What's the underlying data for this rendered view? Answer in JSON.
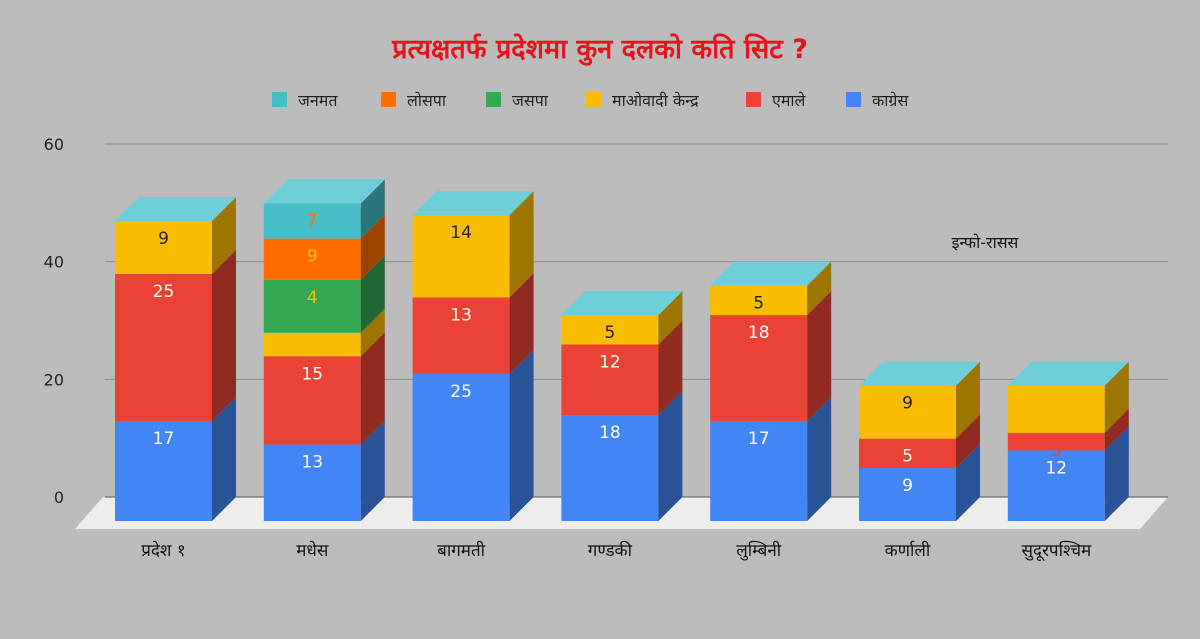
{
  "chart_data": {
    "type": "bar",
    "stacked": true,
    "three_d": true,
    "title": "प्रत्यक्षतर्फ प्रदेशमा कुन दलको कति सिट ?",
    "watermark": "इन्फो-रासस",
    "categories": [
      "प्रदेश १",
      "मधेस",
      "बागमती",
      "गण्डकी",
      "लुम्बिनी",
      "कर्णाली",
      "सुदूरपश्चिम"
    ],
    "ylim": [
      0,
      60
    ],
    "yticks": [
      0,
      20,
      40,
      60
    ],
    "grid": true,
    "legend_position": "top",
    "legend_order": [
      "जनमत",
      "लोसपा",
      "जसपा",
      "माओवादी केन्द्र",
      "एमाले",
      "काग्रेस"
    ],
    "series": [
      {
        "name": "काग्रेस",
        "color": "#4285f4",
        "values": [
          17,
          13,
          25,
          18,
          17,
          9,
          12
        ],
        "labels": [
          "17",
          "13",
          "25",
          "18",
          "17",
          "9",
          "12"
        ],
        "label_colors": [
          "#ffffff",
          "#ffffff",
          "#ffffff",
          "#ffffff",
          "#ffffff",
          "#ffffff",
          "#ffffff"
        ]
      },
      {
        "name": "एमाले",
        "color": "#ea4335",
        "values": [
          25,
          15,
          13,
          12,
          18,
          5,
          3
        ],
        "labels": [
          "25",
          "15",
          "13",
          "12",
          "18",
          "5",
          "3"
        ],
        "label_colors": [
          "#ffffff",
          "#ffffff",
          "#ffffff",
          "#ffffff",
          "#ffffff",
          "#ffffff",
          "#ea4335"
        ]
      },
      {
        "name": "माओवादी केन्द्र",
        "color": "#fbbc04",
        "values": [
          9,
          4,
          14,
          5,
          5,
          9,
          8
        ],
        "labels": [
          "9",
          "",
          "14",
          "5",
          "5",
          "9",
          "8"
        ],
        "label_colors": [
          "#222222",
          "#222222",
          "#222222",
          "#222222",
          "#222222",
          "#222222",
          "#fbbc04"
        ]
      },
      {
        "name": "जसपा",
        "color": "#34a853",
        "values": [
          0,
          9,
          0,
          0,
          0,
          0,
          0
        ],
        "labels": [
          "",
          "4",
          "",
          "",
          "",
          "",
          ""
        ],
        "label_colors": [
          "#222222",
          "#fbbc04",
          "#222222",
          "#222222",
          "#222222",
          "#222222",
          "#222222"
        ]
      },
      {
        "name": "लोसपा",
        "color": "#ff6d01",
        "values": [
          0,
          7,
          0,
          0,
          0,
          0,
          0
        ],
        "labels": [
          "",
          "9",
          "",
          "",
          "",
          "",
          ""
        ],
        "label_colors": [
          "#222222",
          "#fbbc04",
          "#222222",
          "#222222",
          "#222222",
          "#222222",
          "#222222"
        ]
      },
      {
        "name": "जनमत",
        "color": "#46bdc6",
        "values": [
          0,
          6,
          0,
          0,
          0,
          0,
          0
        ],
        "labels": [
          "",
          "7",
          "",
          "",
          "",
          "",
          ""
        ],
        "label_colors": [
          "#222222",
          "#ff6d01",
          "#222222",
          "#222222",
          "#222222",
          "#222222",
          "#222222"
        ]
      }
    ],
    "cap_color": "#6fcfd9"
  }
}
